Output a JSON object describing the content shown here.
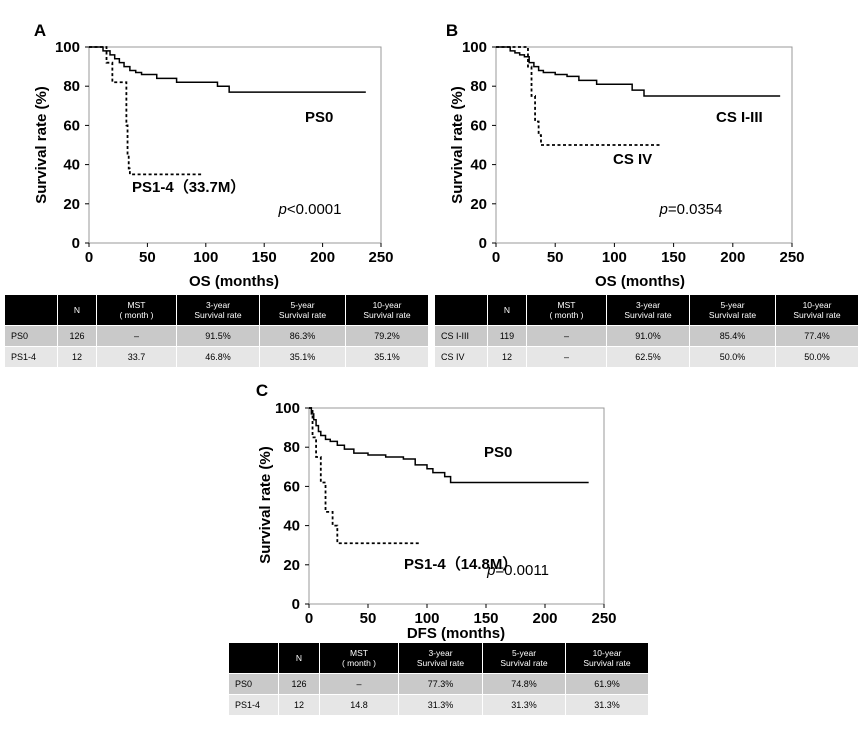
{
  "chart_data": [
    {
      "id": "A",
      "type": "line",
      "panel_label": "A",
      "xlabel": "OS (months)",
      "ylabel": "Survival rate (%)",
      "xlim": [
        0,
        250
      ],
      "ylim": [
        0,
        100
      ],
      "xticks": [
        "0",
        "50",
        "100",
        "150",
        "200",
        "250"
      ],
      "yticks": [
        "0",
        "20",
        "40",
        "60",
        "80",
        "100"
      ],
      "p_value": {
        "prefix": "p",
        "value": "<0.0001"
      },
      "series": [
        {
          "name": "PS0",
          "label": "PS0",
          "style": "solid",
          "x": [
            0,
            8,
            12,
            15,
            18,
            22,
            26,
            30,
            35,
            40,
            45,
            50,
            58,
            65,
            75,
            85,
            100,
            110,
            120,
            237
          ],
          "y": [
            100,
            100,
            98,
            98,
            96,
            94,
            92,
            90,
            88,
            87,
            86,
            86,
            84,
            84,
            82,
            82,
            82,
            80,
            77,
            77
          ]
        },
        {
          "name": "PS1-4",
          "label": "PS1-4（33.7M）",
          "style": "dashed",
          "x": [
            0,
            13,
            15,
            20,
            27,
            32,
            33,
            34,
            35,
            96
          ],
          "y": [
            100,
            100,
            92,
            82,
            82,
            60,
            45,
            38,
            35,
            35
          ]
        }
      ],
      "table": {
        "headers": [
          "",
          "N",
          "MST\n( month )",
          "3-year\nSurvival rate",
          "5-year\nSurvival rate",
          "10-year\nSurvival rate"
        ],
        "rows": [
          [
            "PS0",
            "126",
            "–",
            "91.5%",
            "86.3%",
            "79.2%"
          ],
          [
            "PS1-4",
            "12",
            "33.7",
            "46.8%",
            "35.1%",
            "35.1%"
          ]
        ]
      }
    },
    {
      "id": "B",
      "type": "line",
      "panel_label": "B",
      "xlabel": "OS (months)",
      "ylabel": "Survival rate (%)",
      "xlim": [
        0,
        250
      ],
      "ylim": [
        0,
        100
      ],
      "xticks": [
        "0",
        "50",
        "100",
        "150",
        "200",
        "250"
      ],
      "yticks": [
        "0",
        "20",
        "40",
        "60",
        "80",
        "100"
      ],
      "p_value": {
        "prefix": "p",
        "value": "=0.0354"
      },
      "series": [
        {
          "name": "CS I-III",
          "label": "CS I-III",
          "style": "solid",
          "x": [
            0,
            8,
            12,
            16,
            20,
            24,
            28,
            32,
            36,
            40,
            50,
            60,
            70,
            85,
            100,
            115,
            125,
            240
          ],
          "y": [
            100,
            100,
            98,
            97,
            96,
            95,
            92,
            90,
            88,
            87,
            86,
            85,
            83,
            81,
            81,
            78,
            75,
            75
          ]
        },
        {
          "name": "CS IV",
          "label": "CS IV",
          "style": "dashed",
          "x": [
            0,
            25,
            27,
            30,
            33,
            36,
            38,
            140
          ],
          "y": [
            100,
            100,
            90,
            75,
            62,
            55,
            50,
            50
          ]
        }
      ],
      "table": {
        "headers": [
          "",
          "N",
          "MST\n( month )",
          "3-year\nSurvival rate",
          "5-year\nSurvival rate",
          "10-year\nSurvival rate"
        ],
        "rows": [
          [
            "CS I-III",
            "119",
            "–",
            "91.0%",
            "85.4%",
            "77.4%"
          ],
          [
            "CS IV",
            "12",
            "–",
            "62.5%",
            "50.0%",
            "50.0%"
          ]
        ]
      }
    },
    {
      "id": "C",
      "type": "line",
      "panel_label": "C",
      "xlabel": "DFS (months)",
      "ylabel": "Survival rate (%)",
      "xlim": [
        0,
        250
      ],
      "ylim": [
        0,
        100
      ],
      "xticks": [
        "0",
        "50",
        "100",
        "150",
        "200",
        "250"
      ],
      "yticks": [
        "0",
        "20",
        "40",
        "60",
        "80",
        "100"
      ],
      "p_value": {
        "prefix": "p",
        "value": "=0.0011"
      },
      "series": [
        {
          "name": "PS0",
          "label": "PS0",
          "style": "solid",
          "x": [
            0,
            2,
            4,
            6,
            8,
            10,
            14,
            18,
            24,
            30,
            38,
            50,
            65,
            80,
            90,
            100,
            105,
            115,
            120,
            237
          ],
          "y": [
            100,
            97,
            94,
            91,
            88,
            86,
            84,
            83,
            81,
            79,
            77,
            76,
            75,
            74,
            71,
            69,
            67,
            65,
            62,
            62
          ]
        },
        {
          "name": "PS1-4",
          "label": "PS1-4（14.8M）",
          "style": "dashed",
          "x": [
            0,
            3,
            6,
            10,
            14,
            20,
            24,
            93
          ],
          "y": [
            100,
            85,
            75,
            62,
            47,
            40,
            31,
            31
          ]
        }
      ],
      "table": {
        "headers": [
          "",
          "N",
          "MST\n( month )",
          "3-year\nSurvival rate",
          "5-year\nSurvival rate",
          "10-year\nSurvival rate"
        ],
        "rows": [
          [
            "PS0",
            "126",
            "–",
            "77.3%",
            "74.8%",
            "61.9%"
          ],
          [
            "PS1-4",
            "12",
            "14.8",
            "31.3%",
            "31.3%",
            "31.3%"
          ]
        ]
      }
    }
  ]
}
